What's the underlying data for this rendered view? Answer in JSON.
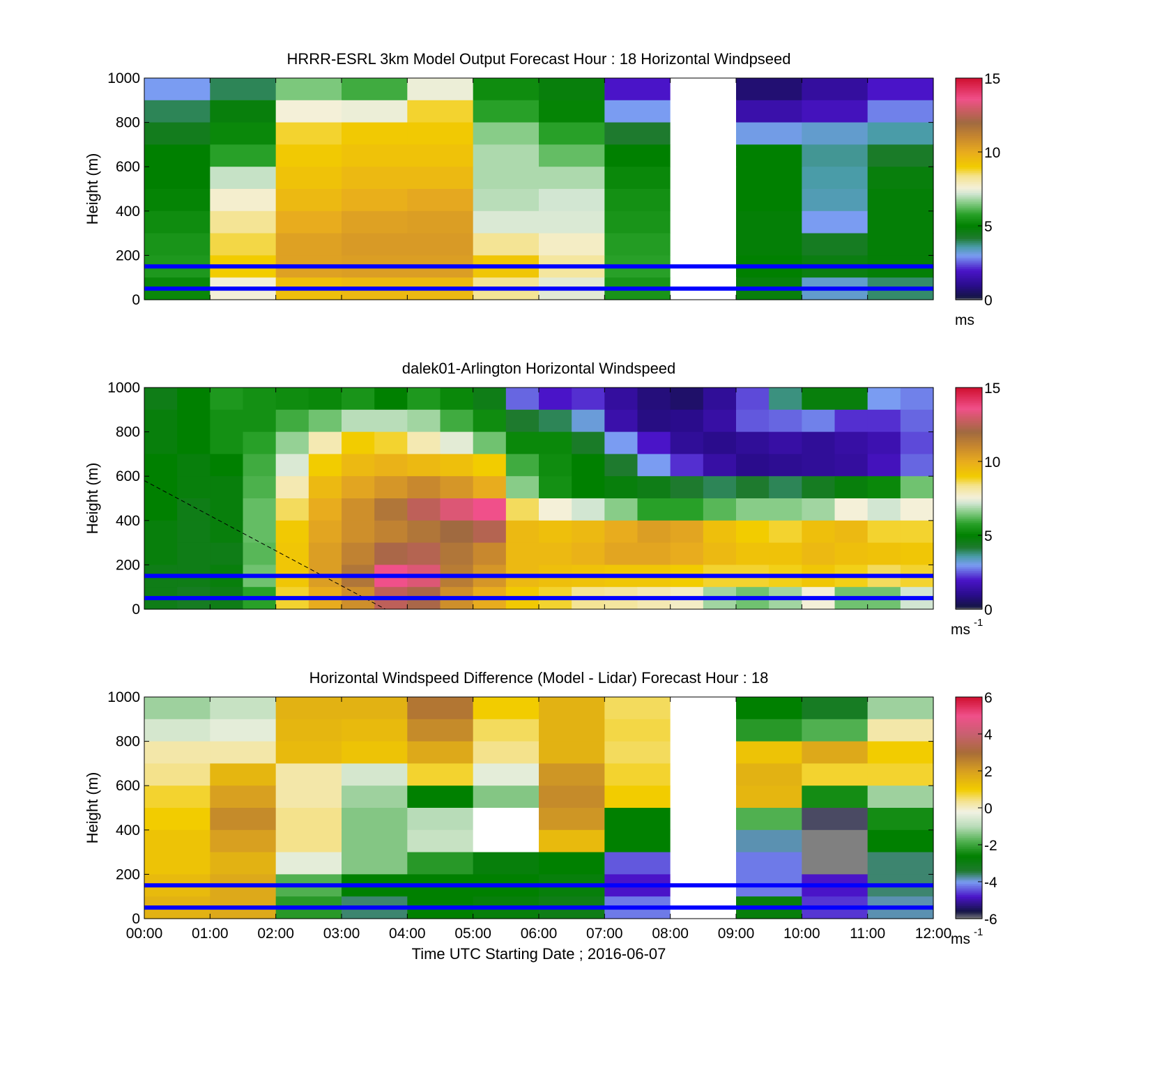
{
  "figure": {
    "xlabel": "Time UTC  Starting Date ; 2016-06-07",
    "x_ticks": [
      "00:00",
      "01:00",
      "02:00",
      "03:00",
      "04:00",
      "05:00",
      "06:00",
      "07:00",
      "08:00",
      "09:00",
      "10:00",
      "11:00",
      "12:00"
    ],
    "y_ticks": [
      "0",
      "200",
      "400",
      "600",
      "800",
      "1000"
    ],
    "ylabel": "Height (m)",
    "hlines_m": [
      150,
      50
    ],
    "hline_color": "#0000ff"
  },
  "panels": [
    {
      "title": "HRRR-ESRL 3km Model Output   Forecast Hour : 18 Horizontal Windpseed",
      "ylabel": "Height (m)",
      "cbar_ticks": [
        "0",
        "5",
        "10",
        "15"
      ],
      "cbar_unit": "ms",
      "cbar_unit_sup": ""
    },
    {
      "title": "dalek01-Arlington  Horizontal Windspeed",
      "ylabel": "Height (m)",
      "cbar_ticks": [
        "0",
        "5",
        "10",
        "15"
      ],
      "cbar_unit": "ms",
      "cbar_unit_sup": "-1"
    },
    {
      "title": "Horizontal Windspeed Difference (Model - Lidar) Forecast Hour : 18",
      "ylabel": "Height (m)",
      "cbar_ticks": [
        "-6",
        "-4",
        "-2",
        "0",
        "2",
        "4",
        "6"
      ],
      "cbar_unit": "ms",
      "cbar_unit_sup": "-1"
    }
  ],
  "chart_data": [
    {
      "type": "heatmap",
      "title": "HRRR-ESRL 3km Model Output   Forecast Hour : 18 Horizontal Windpseed",
      "ylabel": "Height (m)",
      "ylim": [
        0,
        1000
      ],
      "xlim": [
        "00:00",
        "12:00"
      ],
      "x": [
        "00:00",
        "01:00",
        "02:00",
        "03:00",
        "04:00",
        "05:00",
        "06:00",
        "07:00",
        "08:00",
        "09:00",
        "10:00",
        "11:00"
      ],
      "heights_m": [
        950,
        850,
        750,
        650,
        550,
        450,
        350,
        250,
        150,
        50
      ],
      "values": [
        [
          3.0,
          4.0,
          6.5,
          6.0,
          7.5,
          5.3,
          4.8,
          2.0,
          null,
          0.7,
          1.3,
          2.0
        ],
        [
          4.0,
          4.8,
          7.6,
          7.5,
          8.8,
          5.8,
          5.1,
          3.0,
          null,
          1.5,
          1.8,
          2.8
        ],
        [
          4.5,
          5.2,
          8.8,
          9.1,
          9.1,
          6.6,
          5.8,
          4.2,
          null,
          3.1,
          3.3,
          3.6
        ],
        [
          5.0,
          5.8,
          9.1,
          9.3,
          9.3,
          6.9,
          6.3,
          5.0,
          null,
          5.0,
          3.7,
          4.3
        ],
        [
          5.0,
          7.1,
          9.3,
          9.6,
          9.6,
          6.9,
          6.9,
          5.2,
          null,
          5.0,
          3.6,
          4.8
        ],
        [
          5.1,
          7.7,
          9.6,
          9.9,
          10.1,
          7.0,
          7.2,
          5.4,
          null,
          5.0,
          3.5,
          4.9
        ],
        [
          5.3,
          8.3,
          10.0,
          10.3,
          10.4,
          7.3,
          7.3,
          5.5,
          null,
          4.9,
          3.0,
          4.9
        ],
        [
          5.5,
          8.7,
          10.3,
          10.5,
          10.5,
          8.3,
          7.8,
          5.7,
          null,
          4.9,
          4.4,
          4.9
        ],
        [
          5.6,
          9.0,
          10.3,
          10.4,
          10.4,
          9.2,
          8.2,
          5.8,
          null,
          5.0,
          4.7,
          4.9
        ],
        [
          5.2,
          7.6,
          9.4,
          9.6,
          9.6,
          8.3,
          7.4,
          5.5,
          null,
          4.8,
          3.3,
          3.9
        ]
      ],
      "colorbar": {
        "label": "ms",
        "range": [
          0,
          15
        ],
        "ticks": [
          0,
          5,
          10,
          15
        ]
      },
      "horizontal_lines_m": [
        150,
        50
      ]
    },
    {
      "type": "heatmap",
      "title": "dalek01-Arlington  Horizontal Windspeed",
      "ylabel": "Height (m)",
      "ylim": [
        0,
        1000
      ],
      "xlim": [
        "00:00",
        "12:00"
      ],
      "x": [
        "00:00",
        "00:30",
        "01:00",
        "01:30",
        "02:00",
        "02:30",
        "03:00",
        "03:30",
        "04:00",
        "04:30",
        "05:00",
        "05:30",
        "06:00",
        "06:30",
        "07:00",
        "07:30",
        "08:00",
        "08:30",
        "09:00",
        "09:30",
        "10:00",
        "10:30",
        "11:00",
        "11:30"
      ],
      "heights_m": [
        950,
        850,
        750,
        650,
        550,
        450,
        350,
        250,
        150,
        50
      ],
      "values": [
        [
          4.6,
          5.0,
          5.6,
          5.4,
          5.3,
          5.2,
          5.5,
          5.0,
          5.6,
          5.2,
          4.6,
          2.6,
          2.0,
          2.2,
          1.3,
          0.8,
          0.6,
          1.2,
          2.4,
          3.8,
          4.8,
          4.8,
          3.0,
          2.8
        ],
        [
          4.8,
          5.0,
          5.4,
          5.4,
          6.0,
          6.4,
          7.0,
          7.0,
          6.8,
          6.0,
          5.3,
          4.2,
          4.0,
          3.2,
          1.5,
          0.9,
          1.0,
          1.4,
          2.5,
          2.6,
          2.8,
          2.2,
          2.2,
          2.6
        ],
        [
          4.8,
          5.0,
          5.4,
          5.8,
          6.7,
          8.0,
          9.0,
          8.8,
          8.0,
          7.4,
          6.4,
          5.2,
          5.2,
          4.3,
          3.0,
          2.0,
          1.2,
          1.0,
          1.2,
          1.4,
          1.2,
          1.4,
          1.6,
          2.4
        ],
        [
          5.0,
          4.8,
          5.0,
          6.0,
          7.3,
          9.0,
          9.6,
          9.8,
          9.6,
          9.4,
          9.0,
          6.0,
          5.3,
          5.0,
          4.2,
          3.0,
          2.2,
          1.4,
          1.0,
          1.1,
          1.2,
          1.3,
          1.8,
          2.6
        ],
        [
          5.0,
          4.8,
          4.8,
          6.1,
          8.0,
          9.6,
          10.2,
          10.6,
          11.0,
          10.6,
          10.0,
          6.6,
          5.4,
          5.0,
          4.8,
          4.6,
          4.2,
          4.0,
          4.2,
          4.0,
          4.4,
          4.8,
          5.2,
          6.4
        ],
        [
          5.0,
          4.6,
          4.8,
          6.3,
          8.6,
          10.0,
          10.8,
          11.6,
          12.6,
          13.2,
          13.6,
          8.6,
          7.6,
          7.2,
          6.6,
          5.8,
          5.8,
          6.2,
          6.6,
          6.6,
          6.8,
          7.6,
          7.2,
          7.6
        ],
        [
          4.8,
          4.6,
          4.8,
          6.3,
          9.1,
          10.2,
          10.8,
          11.2,
          11.6,
          12.0,
          12.4,
          9.6,
          9.4,
          9.6,
          10.0,
          10.4,
          10.2,
          9.4,
          9.0,
          8.8,
          9.4,
          9.6,
          8.8,
          8.8
        ],
        [
          4.8,
          4.6,
          4.6,
          6.2,
          9.2,
          10.4,
          11.2,
          12.2,
          12.4,
          11.6,
          11.0,
          9.6,
          9.6,
          9.8,
          10.2,
          10.2,
          10.0,
          9.6,
          9.3,
          9.3,
          9.6,
          9.4,
          9.3,
          9.2
        ],
        [
          4.6,
          4.6,
          4.8,
          6.4,
          9.2,
          10.4,
          11.6,
          13.6,
          13.2,
          11.4,
          10.6,
          9.6,
          9.4,
          9.3,
          9.2,
          9.2,
          9.0,
          8.8,
          8.8,
          8.9,
          9.2,
          8.9,
          8.6,
          8.8
        ],
        [
          4.6,
          4.4,
          4.6,
          5.8,
          8.8,
          10.0,
          10.8,
          12.6,
          12.2,
          10.8,
          10.0,
          9.1,
          8.8,
          8.3,
          8.2,
          8.0,
          7.8,
          6.8,
          6.4,
          6.8,
          7.6,
          6.4,
          6.4,
          7.2
        ]
      ],
      "colorbar": {
        "label": "ms-1",
        "range": [
          0,
          15
        ],
        "ticks": [
          0,
          5,
          10,
          15
        ]
      },
      "horizontal_lines_m": [
        150,
        50
      ],
      "reference_line": {
        "style": "dashed",
        "from": {
          "x": "00:00",
          "y_m": 580
        },
        "to": {
          "x": "03:40",
          "y_m": 0
        }
      }
    },
    {
      "type": "heatmap",
      "title": "Horizontal Windspeed Difference (Model - Lidar) Forecast Hour : 18",
      "ylabel": "Height (m)",
      "xlabel": "Time UTC  Starting Date ; 2016-06-07",
      "ylim": [
        0,
        1000
      ],
      "xlim": [
        "00:00",
        "12:00"
      ],
      "x": [
        "00:00",
        "01:00",
        "02:00",
        "03:00",
        "04:00",
        "05:00",
        "06:00",
        "07:00",
        "08:00",
        "09:00",
        "10:00",
        "11:00"
      ],
      "heights_m": [
        950,
        850,
        750,
        650,
        550,
        450,
        350,
        250,
        150,
        50
      ],
      "values": [
        [
          -1.2,
          -0.8,
          1.6,
          1.6,
          2.8,
          1.0,
          1.6,
          0.6,
          null,
          -2.6,
          -3.2,
          -1.2
        ],
        [
          -0.6,
          -0.4,
          1.5,
          1.4,
          2.4,
          0.6,
          1.6,
          0.7,
          null,
          -2.2,
          -1.8,
          0.2
        ],
        [
          0.2,
          0.2,
          1.4,
          1.2,
          1.8,
          0.4,
          1.6,
          0.6,
          null,
          1.2,
          1.8,
          1.0
        ],
        [
          0.4,
          1.5,
          0.2,
          -0.6,
          0.8,
          -0.4,
          2.2,
          0.8,
          null,
          1.6,
          0.8,
          0.8
        ],
        [
          0.8,
          2.0,
          0.2,
          -1.2,
          -2.6,
          -1.4,
          2.4,
          1.0,
          null,
          1.5,
          -2.4,
          -1.2
        ],
        [
          1.0,
          2.4,
          0.4,
          -1.4,
          -1.0,
          null,
          2.2,
          -2.6,
          null,
          -1.8,
          -5.8,
          -2.4
        ],
        [
          1.2,
          2.0,
          0.4,
          -1.4,
          -0.8,
          null,
          1.4,
          -2.6,
          null,
          -3.8,
          -6.0,
          -2.6
        ],
        [
          1.2,
          1.6,
          -0.4,
          -1.4,
          -2.2,
          -2.8,
          -2.6,
          -4.4,
          null,
          -4.2,
          -6.0,
          -3.6
        ],
        [
          1.4,
          1.8,
          -1.8,
          -2.6,
          -2.6,
          -2.6,
          -2.8,
          -4.8,
          null,
          -4.2,
          -4.8,
          -3.6
        ],
        [
          1.6,
          1.8,
          -2.2,
          -3.6,
          -2.6,
          -2.8,
          -3.0,
          -4.2,
          null,
          -2.8,
          -4.6,
          -3.8
        ]
      ],
      "colorbar": {
        "label": "ms-1",
        "range": [
          -6,
          6
        ],
        "ticks": [
          -6,
          -4,
          -2,
          0,
          2,
          4,
          6
        ]
      },
      "horizontal_lines_m": [
        150,
        50
      ]
    }
  ]
}
